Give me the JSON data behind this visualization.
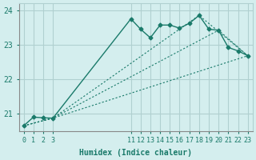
{
  "xlabel": "Humidex (Indice chaleur)",
  "ylabel": "",
  "bg_color": "#d4eeee",
  "grid_color": "#b0d0d0",
  "line_color": "#1a7a6a",
  "xlim": [
    -0.5,
    23.5
  ],
  "ylim": [
    20.5,
    24.2
  ],
  "yticks": [
    21,
    22,
    23,
    24
  ],
  "xticks": [
    0,
    1,
    2,
    3,
    11,
    12,
    13,
    14,
    15,
    16,
    17,
    18,
    19,
    20,
    21,
    22,
    23
  ],
  "line1_x": [
    0,
    1,
    2,
    3,
    11,
    12,
    13,
    14,
    15,
    16,
    17,
    18,
    19,
    20,
    21,
    22,
    23
  ],
  "line1_y": [
    20.65,
    20.9,
    20.88,
    20.87,
    23.75,
    23.45,
    23.2,
    23.57,
    23.57,
    23.48,
    23.62,
    23.85,
    23.45,
    23.42,
    22.92,
    22.82,
    22.68
  ],
  "line2_x": [
    0,
    3,
    23
  ],
  "line2_y": [
    20.65,
    20.87,
    22.68
  ],
  "line3_x": [
    0,
    3,
    20,
    23
  ],
  "line3_y": [
    20.65,
    20.87,
    23.42,
    22.68
  ],
  "line4_x": [
    0,
    3,
    18,
    23
  ],
  "line4_y": [
    20.65,
    20.87,
    23.85,
    22.68
  ]
}
